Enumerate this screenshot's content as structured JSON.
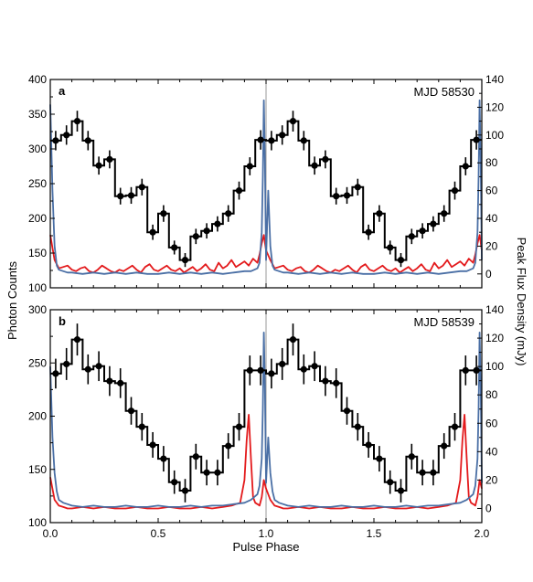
{
  "figure": {
    "y_left_label": "Photon Counts",
    "y_right_label": "Peak Flux Density (mJy)",
    "x_label": "Pulse Phase",
    "colors": {
      "photon": "#000000",
      "red": "#e31a1c",
      "blue": "#4a6fa5"
    }
  },
  "chart_data": [
    {
      "panel": "a",
      "type": "line",
      "annotation": "MJD 58530",
      "xlim": [
        0.0,
        2.0
      ],
      "xticks": [
        "0.0",
        "0.5",
        "1.0",
        "1.5",
        "2.0"
      ],
      "ylim_left": [
        100,
        400
      ],
      "yticks_left": [
        "100",
        "150",
        "200",
        "250",
        "300",
        "350",
        "400"
      ],
      "ylim_right": [
        -10,
        140
      ],
      "yticks_right": [
        "0",
        "20",
        "40",
        "60",
        "80",
        "100",
        "120",
        "140"
      ],
      "photon_counts": {
        "x": [
          0.0,
          0.05,
          0.1,
          0.15,
          0.2,
          0.25,
          0.3,
          0.35,
          0.4,
          0.45,
          0.5,
          0.55,
          0.6,
          0.65,
          0.7,
          0.75,
          0.8,
          0.85,
          0.9,
          0.95
        ],
        "y": [
          312,
          320,
          340,
          312,
          276,
          285,
          232,
          233,
          245,
          180,
          207,
          158,
          140,
          174,
          182,
          192,
          207,
          240,
          275,
          313
        ],
        "err": [
          14,
          14,
          15,
          14,
          13,
          13,
          12,
          12,
          12,
          11,
          12,
          10,
          10,
          11,
          11,
          11,
          12,
          13,
          13,
          14
        ]
      },
      "red_profile": {
        "x": [
          0.0,
          0.02,
          0.04,
          0.06,
          0.08,
          0.1,
          0.12,
          0.14,
          0.16,
          0.18,
          0.2,
          0.22,
          0.24,
          0.26,
          0.28,
          0.3,
          0.32,
          0.34,
          0.36,
          0.38,
          0.4,
          0.42,
          0.44,
          0.46,
          0.48,
          0.5,
          0.52,
          0.54,
          0.56,
          0.58,
          0.6,
          0.62,
          0.64,
          0.66,
          0.68,
          0.7,
          0.72,
          0.74,
          0.76,
          0.78,
          0.8,
          0.82,
          0.84,
          0.86,
          0.88,
          0.9,
          0.92,
          0.94,
          0.96,
          0.97,
          0.98,
          0.99,
          1.0
        ],
        "y": [
          28,
          10,
          4,
          5,
          6,
          3,
          2,
          4,
          5,
          2,
          1,
          3,
          6,
          4,
          2,
          1,
          3,
          2,
          4,
          6,
          3,
          1,
          5,
          7,
          3,
          2,
          4,
          6,
          3,
          2,
          4,
          1,
          3,
          5,
          2,
          4,
          7,
          3,
          2,
          8,
          4,
          6,
          10,
          5,
          7,
          9,
          6,
          11,
          8,
          14,
          22,
          28,
          17
        ]
      },
      "blue_profile": {
        "x": [
          0.0,
          0.01,
          0.02,
          0.03,
          0.04,
          0.06,
          0.08,
          0.1,
          0.15,
          0.2,
          0.25,
          0.3,
          0.35,
          0.4,
          0.45,
          0.5,
          0.55,
          0.6,
          0.65,
          0.7,
          0.75,
          0.8,
          0.85,
          0.9,
          0.93,
          0.96,
          0.97,
          0.98,
          0.985,
          0.99,
          0.995,
          1.0
        ],
        "y": [
          122,
          60,
          20,
          6,
          3,
          2,
          1,
          1,
          0,
          1,
          0,
          1,
          0,
          1,
          0,
          0,
          1,
          0,
          1,
          0,
          1,
          0,
          1,
          2,
          2,
          4,
          8,
          30,
          70,
          125,
          80,
          10
        ]
      }
    },
    {
      "panel": "b",
      "type": "line",
      "annotation": "MJD 58539",
      "xlim": [
        0.0,
        2.0
      ],
      "xticks": [
        "0.0",
        "0.5",
        "1.0",
        "1.5",
        "2.0"
      ],
      "ylim_left": [
        100,
        300
      ],
      "yticks_left": [
        "100",
        "150",
        "200",
        "250",
        "300"
      ],
      "ylim_right": [
        -10,
        140
      ],
      "yticks_right": [
        "0",
        "20",
        "40",
        "60",
        "80",
        "100",
        "120",
        "140"
      ],
      "photon_counts": {
        "x": [
          0.0,
          0.05,
          0.1,
          0.15,
          0.2,
          0.25,
          0.3,
          0.35,
          0.4,
          0.45,
          0.5,
          0.55,
          0.6,
          0.65,
          0.7,
          0.75,
          0.8,
          0.85,
          0.9,
          0.95
        ],
        "y": [
          240,
          249,
          272,
          244,
          247,
          233,
          231,
          205,
          190,
          173,
          160,
          138,
          130,
          162,
          147,
          147,
          172,
          190,
          243,
          243
        ],
        "err": [
          14,
          15,
          15,
          14,
          14,
          14,
          14,
          13,
          13,
          12,
          12,
          11,
          11,
          12,
          12,
          12,
          12,
          13,
          14,
          14
        ]
      },
      "red_profile": {
        "x": [
          0.0,
          0.02,
          0.04,
          0.06,
          0.08,
          0.1,
          0.15,
          0.2,
          0.25,
          0.3,
          0.35,
          0.4,
          0.45,
          0.5,
          0.55,
          0.6,
          0.65,
          0.7,
          0.75,
          0.8,
          0.84,
          0.86,
          0.88,
          0.9,
          0.91,
          0.92,
          0.93,
          0.94,
          0.95,
          0.96,
          0.97,
          0.98,
          0.99,
          1.0
        ],
        "y": [
          22,
          6,
          2,
          1,
          0,
          0,
          1,
          0,
          1,
          0,
          0,
          1,
          0,
          0,
          1,
          0,
          0,
          1,
          0,
          1,
          2,
          3,
          4,
          20,
          48,
          66,
          35,
          8,
          4,
          3,
          2,
          8,
          20,
          14
        ]
      },
      "blue_profile": {
        "x": [
          0.0,
          0.01,
          0.02,
          0.03,
          0.04,
          0.06,
          0.08,
          0.1,
          0.15,
          0.2,
          0.25,
          0.3,
          0.35,
          0.4,
          0.45,
          0.5,
          0.55,
          0.6,
          0.65,
          0.7,
          0.75,
          0.8,
          0.85,
          0.9,
          0.93,
          0.96,
          0.97,
          0.98,
          0.985,
          0.99,
          0.995,
          1.0
        ],
        "y": [
          100,
          50,
          25,
          12,
          6,
          4,
          3,
          2,
          1,
          2,
          1,
          1,
          2,
          1,
          1,
          2,
          1,
          1,
          2,
          1,
          2,
          2,
          3,
          4,
          6,
          10,
          16,
          35,
          70,
          124,
          85,
          18
        ]
      }
    }
  ]
}
